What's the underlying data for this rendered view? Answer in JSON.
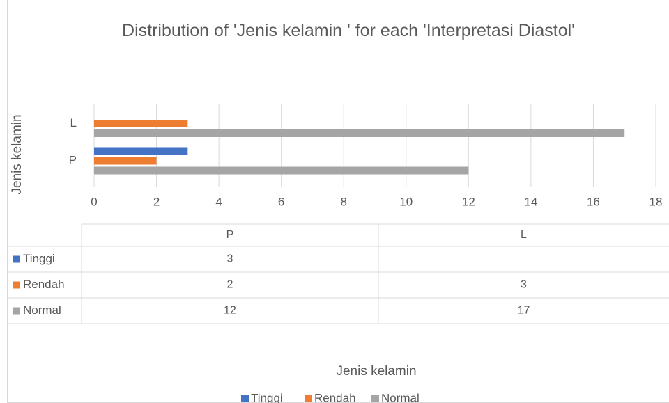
{
  "chart_data": {
    "type": "bar",
    "orientation": "horizontal",
    "title": "Distribution of 'Jenis kelamin ' for each 'Interpretasi Diastol'",
    "x_label": "Jenis kelamin",
    "y_label": "Jenis kelamin",
    "categories": [
      "P",
      "L"
    ],
    "series": [
      {
        "name": "Tinggi",
        "color": "#4472c4",
        "values": [
          3,
          null
        ]
      },
      {
        "name": "Rendah",
        "color": "#ed7d31",
        "values": [
          2,
          3
        ]
      },
      {
        "name": "Normal",
        "color": "#a5a5a5",
        "values": [
          12,
          17
        ]
      }
    ],
    "xlim": [
      0,
      18
    ],
    "xticks": [
      0,
      2,
      4,
      6,
      8,
      10,
      12,
      14,
      16,
      18
    ],
    "grid": true,
    "data_table": true,
    "legend": "bottom"
  }
}
